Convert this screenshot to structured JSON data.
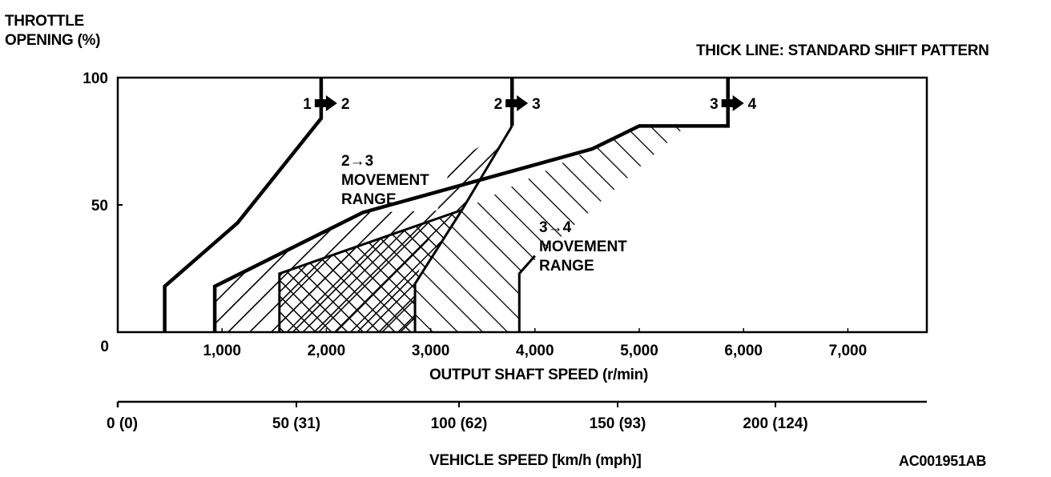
{
  "chart_data": {
    "type": "area",
    "title": "",
    "note": "THICK LINE: STANDARD SHIFT PATTERN",
    "ylabel": [
      "THROTTLE",
      "OPENING (%)"
    ],
    "xlabel": "OUTPUT SHAFT SPEED (r/min)",
    "x2label": "VEHICLE SPEED [km/h (mph)]",
    "figure_id": "AC001951AB",
    "xlim": [
      0,
      7800
    ],
    "ylim": [
      0,
      100
    ],
    "grid": false,
    "y_ticks": [
      {
        "value": 0,
        "label": "0"
      },
      {
        "value": 50,
        "label": "50"
      },
      {
        "value": 100,
        "label": "100"
      }
    ],
    "x_ticks": [
      {
        "value": 1000,
        "label": "1,000"
      },
      {
        "value": 2000,
        "label": "2,000"
      },
      {
        "value": 3000,
        "label": "3,000"
      },
      {
        "value": 4000,
        "label": "4,000"
      },
      {
        "value": 5000,
        "label": "5,000"
      },
      {
        "value": 6000,
        "label": "6,000"
      },
      {
        "value": 7000,
        "label": "7,000"
      }
    ],
    "x2_ticks": [
      {
        "rpm": 0,
        "label": "0 (0)"
      },
      {
        "rpm": 1650,
        "label": "50 (31)"
      },
      {
        "rpm": 3300,
        "label": "100 (62)"
      },
      {
        "rpm": 4950,
        "label": "150 (93)"
      },
      {
        "rpm": 6600,
        "label": "200 (124)"
      }
    ],
    "standard_lines": [
      {
        "name": "1→2",
        "points": [
          [
            450,
            0
          ],
          [
            450,
            18
          ],
          [
            1150,
            43
          ],
          [
            1950,
            84
          ],
          [
            1950,
            100
          ]
        ]
      },
      {
        "name": "2→3",
        "points": [
          [
            3780,
            100
          ],
          [
            3780,
            81
          ]
        ]
      },
      {
        "name": "3→4",
        "points": [
          [
            5850,
            100
          ],
          [
            5850,
            81
          ],
          [
            5000,
            81
          ],
          [
            4550,
            72
          ],
          [
            2350,
            47
          ],
          [
            930,
            18
          ],
          [
            930,
            0
          ]
        ]
      }
    ],
    "regions": [
      {
        "name": "2→3 movement range",
        "hatch": "backslash",
        "points": [
          [
            930,
            0
          ],
          [
            930,
            18
          ],
          [
            2350,
            47
          ],
          [
            3300,
            48
          ],
          [
            3780,
            81
          ],
          [
            3200,
            66
          ],
          [
            2850,
            19
          ],
          [
            2850,
            0
          ]
        ]
      },
      {
        "name": "overlap",
        "hatch": "cross",
        "points": [
          [
            1550,
            0
          ],
          [
            1550,
            23
          ],
          [
            3300,
            48
          ],
          [
            2850,
            19
          ],
          [
            2850,
            0
          ]
        ]
      },
      {
        "name": "3→4 movement range",
        "hatch": "slash",
        "points": [
          [
            2850,
            0
          ],
          [
            2850,
            19
          ],
          [
            3300,
            48
          ],
          [
            4550,
            72
          ],
          [
            5000,
            81
          ],
          [
            5450,
            81
          ],
          [
            3850,
            23
          ],
          [
            3850,
            0
          ]
        ]
      }
    ],
    "shift_labels": [
      {
        "from": "1",
        "to": "2",
        "rpm": 1950
      },
      {
        "from": "2",
        "to": "3",
        "rpm": 3780
      },
      {
        "from": "3",
        "to": "4",
        "rpm": 5850
      }
    ],
    "annotations": [
      {
        "lines": [
          "2→3",
          "MOVEMENT",
          "RANGE"
        ]
      },
      {
        "lines": [
          "3→4",
          "MOVEMENT",
          "RANGE"
        ]
      }
    ]
  }
}
